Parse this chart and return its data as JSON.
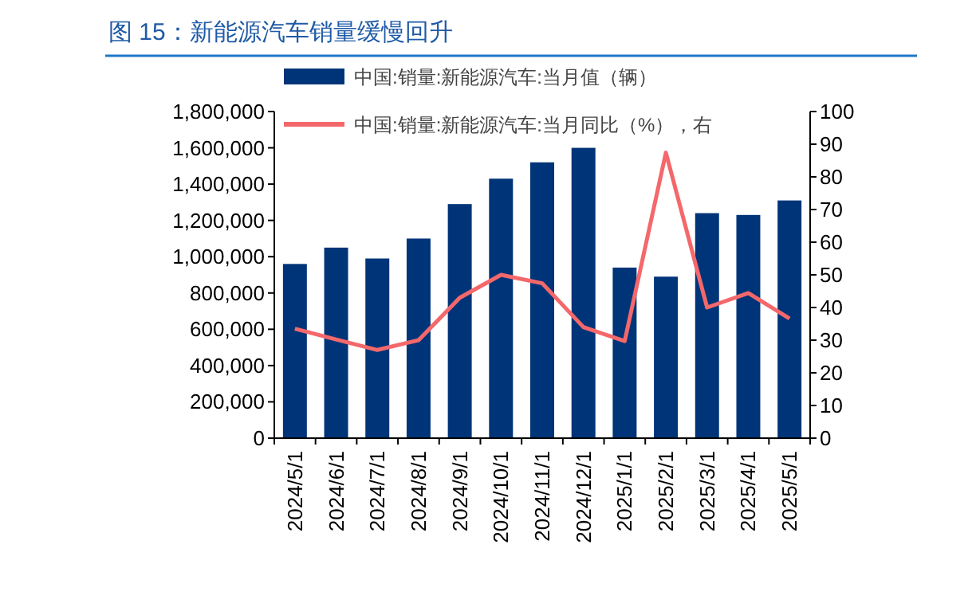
{
  "chart_data": {
    "type": "bar",
    "title": "图 15：新能源汽车销量缓慢回升",
    "categories": [
      "2024/5/1",
      "2024/6/1",
      "2024/7/1",
      "2024/8/1",
      "2024/9/1",
      "2024/10/1",
      "2024/11/1",
      "2024/12/1",
      "2025/1/1",
      "2025/2/1",
      "2025/3/1",
      "2025/4/1",
      "2025/5/1"
    ],
    "series": [
      {
        "name": "中国:销量:新能源汽车:当月值（辆）",
        "color": "#003478",
        "values": [
          960000,
          1050000,
          990000,
          1100000,
          1290000,
          1430000,
          1520000,
          1600000,
          940000,
          890000,
          1240000,
          1230000,
          1310000
        ]
      },
      {
        "name": "中国:销量:新能源汽车:当月同比（%），右",
        "type": "line",
        "axis": "y2",
        "color": "#f4686b",
        "values": [
          33.5,
          30.2,
          27,
          30,
          43,
          50,
          47.4,
          34,
          29.7,
          87.4,
          40,
          44.4,
          36.6
        ]
      }
    ],
    "ylim": [
      0,
      1800000
    ],
    "yticks": [
      {
        "value": 0,
        "label": "0"
      },
      {
        "value": 200000,
        "label": "200,000"
      },
      {
        "value": 400000,
        "label": "400,000"
      },
      {
        "value": 600000,
        "label": "600,000"
      },
      {
        "value": 800000,
        "label": "800,000"
      },
      {
        "value": 1000000,
        "label": "1,000,000"
      },
      {
        "value": 1200000,
        "label": "1,200,000"
      },
      {
        "value": 1400000,
        "label": "1,400,000"
      },
      {
        "value": 1600000,
        "label": "1,600,000"
      },
      {
        "value": 1800000,
        "label": "1,800,000"
      }
    ],
    "y2lim": [
      0,
      100
    ],
    "y2ticks": [
      0,
      10,
      20,
      30,
      40,
      50,
      60,
      70,
      80,
      90,
      100
    ],
    "legend": "top",
    "grid": false,
    "marker": "none",
    "line_style": "solid"
  }
}
